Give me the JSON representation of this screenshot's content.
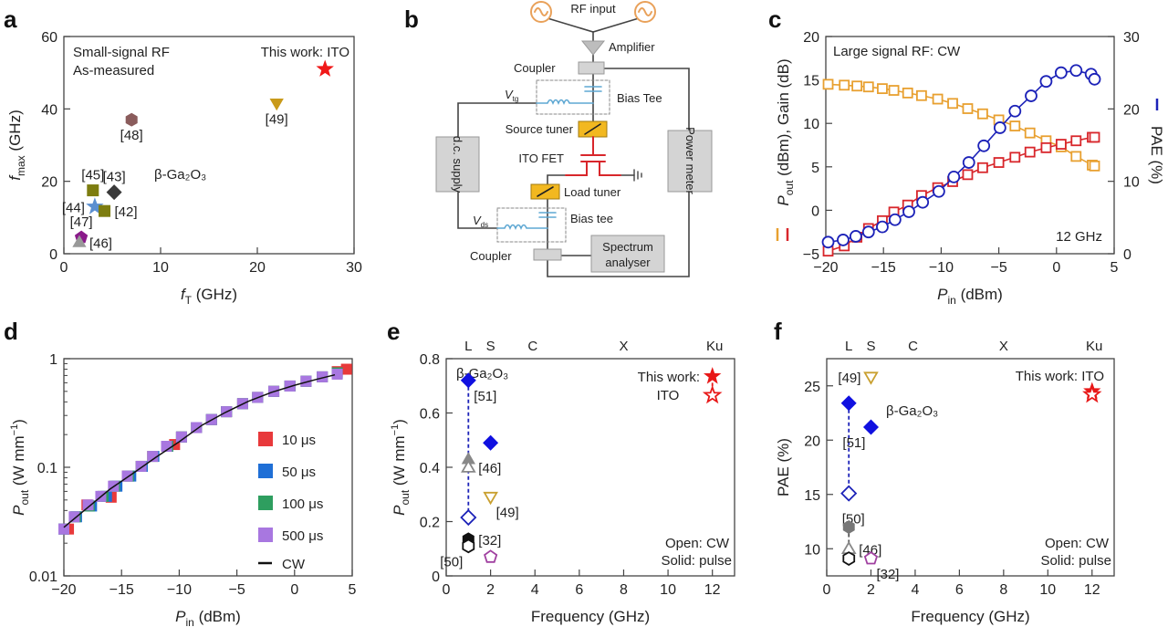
{
  "panel_labels": [
    "a",
    "b",
    "c",
    "d",
    "e",
    "f"
  ],
  "diagram": {
    "rf_input": "RF input",
    "amplifier": "Amplifier",
    "coupler_top": "Coupler",
    "bias_tee_top": "Bias Tee",
    "vtg_var": "V",
    "vtg_sub": "tg",
    "source_tuner": "Source tuner",
    "dc_supply": "d.c. supply",
    "ito_fet": "ITO FET",
    "load_tuner": "Load tuner",
    "bias_tee_bottom": "Bias tee",
    "vds_var": "V",
    "vds_sub": "ds",
    "coupler_bottom": "Coupler",
    "spectrum_line1": "Spectrum",
    "spectrum_line2": "analyser",
    "power_meter": "Power meter",
    "colors": {
      "source": "#e9a15a",
      "tuner": "#f2b820",
      "fet": "#d8262b",
      "bias": "#5fa8d3",
      "box": "#d4d4d4"
    }
  },
  "chart_data": [
    {
      "panel": "a",
      "type": "scatter",
      "xlabel": {
        "var": "f",
        "sub": "T",
        "unit": " (GHz)"
      },
      "ylabel": {
        "var": "f",
        "sub": "max",
        "unit": " (GHz)"
      },
      "xlim": [
        0,
        30
      ],
      "ylim": [
        0,
        60
      ],
      "xticks": [
        0,
        10,
        20,
        30
      ],
      "yticks": [
        0,
        20,
        40,
        60
      ],
      "annotations": {
        "line1": "Small-signal RF",
        "line2": "As-measured",
        "this_work": "This work: ITO",
        "material": "β-Ga₂O₃"
      },
      "points": [
        {
          "label": "",
          "x": 27,
          "y": 51,
          "marker": "star",
          "color": "#f01818",
          "filled": true
        },
        {
          "label": "[49]",
          "x": 22,
          "y": 41.5,
          "marker": "tri-down",
          "color": "#c99a1a",
          "filled": true,
          "label_pos": "below"
        },
        {
          "label": "[48]",
          "x": 7,
          "y": 37,
          "marker": "hexagon",
          "color": "#8a5c5c",
          "filled": true,
          "label_pos": "below"
        },
        {
          "label": "[45]",
          "x": 3,
          "y": 17.5,
          "marker": "square",
          "color": "#7d7d10",
          "filled": true,
          "label_pos": "above"
        },
        {
          "label": "[43]",
          "x": 5.2,
          "y": 17,
          "marker": "diamond",
          "color": "#3a3a3a",
          "filled": true,
          "label_pos": "above"
        },
        {
          "label": "[44]",
          "x": 3.2,
          "y": 13,
          "marker": "star",
          "color": "#5b8fd0",
          "filled": true,
          "label_pos": "left"
        },
        {
          "label": "[42]",
          "x": 4.2,
          "y": 11.8,
          "marker": "square",
          "color": "#7d7d10",
          "filled": true,
          "label_pos": "right"
        },
        {
          "label": "[47]",
          "x": 1.8,
          "y": 4.5,
          "marker": "pentagon",
          "color": "#8a1a8a",
          "filled": true,
          "label_pos": "above"
        },
        {
          "label": "[46]",
          "x": 1.6,
          "y": 3.2,
          "marker": "tri-up",
          "color": "#999999",
          "filled": true,
          "label_pos": "right"
        }
      ]
    },
    {
      "panel": "c",
      "type": "line",
      "xlabel": {
        "var": "P",
        "sub": "in",
        "unit": " (dBm)"
      },
      "ylabel_left": {
        "var": "P",
        "sub": "out",
        "unit": " (dBm), Gain (dB)"
      },
      "ylabel_right": "PAE (%)",
      "xlim": [
        -20,
        5
      ],
      "ylim_left": [
        -5,
        20
      ],
      "ylim_right": [
        0,
        30
      ],
      "xticks": [
        -20,
        -15,
        -10,
        -5,
        0,
        5
      ],
      "yticks_left": [
        -5,
        0,
        5,
        10,
        15,
        20
      ],
      "yticks_right": [
        0,
        10,
        20,
        30
      ],
      "annotations": {
        "title": "Large signal RF: CW",
        "frequency": "12 GHz"
      },
      "series": [
        {
          "axis": "left",
          "marker": "square",
          "color": "#e8a030",
          "x": [
            -19.8,
            -18.4,
            -17.3,
            -16.3,
            -15.1,
            -14.1,
            -12.9,
            -11.7,
            -10.3,
            -9,
            -7.7,
            -6.4,
            -5,
            -3.6,
            -2.3,
            -0.9,
            0.4,
            1.7,
            3.1,
            3.3
          ],
          "y": [
            14.5,
            14.4,
            14.3,
            14.2,
            14.0,
            13.8,
            13.5,
            13.2,
            12.8,
            12.3,
            11.7,
            11.1,
            10.4,
            9.7,
            8.9,
            8.0,
            7.3,
            6.2,
            5.2,
            5.1
          ]
        },
        {
          "axis": "left",
          "marker": "square",
          "color": "#d8262b",
          "x": [
            -19.8,
            -18.4,
            -17.3,
            -16.3,
            -15.1,
            -14.1,
            -12.9,
            -11.7,
            -10.3,
            -9,
            -7.7,
            -6.4,
            -5,
            -3.6,
            -2.3,
            -0.9,
            0.4,
            1.7,
            3.1,
            3.3
          ],
          "y": [
            -4.7,
            -4.1,
            -3.1,
            -2.1,
            -1.2,
            -0.2,
            0.6,
            1.7,
            2.6,
            3.3,
            4.1,
            4.9,
            5.5,
            6.1,
            6.7,
            7.2,
            7.6,
            8.0,
            8.4,
            8.4
          ]
        },
        {
          "axis": "right",
          "marker": "circle",
          "color": "#1c22b8",
          "x": [
            -19.8,
            -18.5,
            -17.4,
            -16.3,
            -15.1,
            -14,
            -12.8,
            -11.6,
            -10.2,
            -8.9,
            -7.6,
            -6.3,
            -4.9,
            -3.6,
            -2.2,
            -0.9,
            0.4,
            1.7,
            3.0,
            3.3
          ],
          "y": [
            1.6,
            1.9,
            2.4,
            3.0,
            3.7,
            4.7,
            5.8,
            7.1,
            8.6,
            10.6,
            12.6,
            14.9,
            17.4,
            19.7,
            21.8,
            23.8,
            25.0,
            25.3,
            24.8,
            24.1
          ]
        }
      ]
    },
    {
      "panel": "d",
      "type": "scatter",
      "xlabel": {
        "var": "P",
        "sub": "in",
        "unit": " (dBm)"
      },
      "ylabel": {
        "var": "P",
        "sub": "out",
        "unit": " (W mm",
        "sup": "−1",
        "close": ")"
      },
      "xlim": [
        -20,
        5
      ],
      "ylim": [
        0.01,
        1
      ],
      "yscale": "log",
      "xticks": [
        -20,
        -15,
        -10,
        -5,
        0,
        5
      ],
      "yticks": [
        "0.01",
        "0.1",
        "1"
      ],
      "legend_placement": "bottom-right",
      "series": [
        {
          "name": "10 μs",
          "color": "#e8393b",
          "marker": "square",
          "x": [
            -19.6,
            -18,
            -15.9,
            -14.5,
            -13.3,
            -12.3,
            -10.4,
            -9.8,
            -8.5,
            -7.2,
            -5.9,
            -4.5,
            -3.2,
            -1.8,
            -0.4,
            1,
            2.4,
            3.7,
            4.5
          ],
          "y": [
            0.027,
            0.045,
            0.053,
            0.083,
            0.102,
            0.126,
            0.162,
            0.19,
            0.232,
            0.275,
            0.325,
            0.385,
            0.44,
            0.5,
            0.56,
            0.62,
            0.68,
            0.76,
            0.8
          ]
        },
        {
          "name": "50 μs",
          "color": "#1f6fd6",
          "marker": "square",
          "x": [
            -20,
            -18.9,
            -17.6,
            -16.3,
            -15.4,
            -14.2,
            -13.2,
            -12.2,
            -11,
            -9.8,
            -8.5,
            -7.2,
            -5.9,
            -4.5,
            -3.2,
            -1.8,
            -0.4,
            1,
            2.4,
            3.7
          ],
          "y": [
            0.027,
            0.035,
            0.044,
            0.054,
            0.067,
            0.083,
            0.102,
            0.126,
            0.156,
            0.19,
            0.232,
            0.275,
            0.325,
            0.385,
            0.44,
            0.5,
            0.56,
            0.62,
            0.68,
            0.74
          ]
        },
        {
          "name": "100 μs",
          "color": "#2e9e5f",
          "marker": "square",
          "x": [
            -20,
            -19,
            -17.8,
            -16.6,
            -15.6,
            -14.4,
            -13.3,
            -12.3,
            -11,
            -9.8,
            -8.5,
            -7.2,
            -5.9,
            -4.5,
            -3.2,
            -1.8,
            -0.4,
            1,
            2.4,
            3.7
          ],
          "y": [
            0.027,
            0.035,
            0.044,
            0.054,
            0.067,
            0.083,
            0.102,
            0.126,
            0.156,
            0.19,
            0.232,
            0.275,
            0.325,
            0.385,
            0.44,
            0.5,
            0.56,
            0.62,
            0.68,
            0.74
          ]
        },
        {
          "name": "500 μs",
          "color": "#a877e0",
          "marker": "square",
          "x": [
            -20,
            -19.1,
            -17.9,
            -16.8,
            -15.7,
            -14.5,
            -13.3,
            -12.3,
            -11.1,
            -9.8,
            -8.5,
            -7.2,
            -5.9,
            -4.5,
            -3.2,
            -1.8,
            -0.4,
            1,
            2.4,
            3.7
          ],
          "y": [
            0.027,
            0.035,
            0.045,
            0.054,
            0.067,
            0.083,
            0.102,
            0.126,
            0.156,
            0.19,
            0.232,
            0.275,
            0.325,
            0.385,
            0.44,
            0.5,
            0.56,
            0.62,
            0.68,
            0.72
          ]
        },
        {
          "name": "CW",
          "color": "#111111",
          "marker": "line",
          "x": [
            -20,
            -18,
            -16,
            -14,
            -12,
            -10,
            -8,
            -6,
            -4,
            -2,
            0,
            2,
            3.5
          ],
          "y": [
            0.028,
            0.042,
            0.063,
            0.088,
            0.124,
            0.172,
            0.245,
            0.32,
            0.405,
            0.49,
            0.57,
            0.65,
            0.71
          ]
        }
      ]
    },
    {
      "panel": "e",
      "type": "scatter",
      "xlabel": "Frequency (GHz)",
      "ylabel": {
        "var": "P",
        "sub": "out",
        "unit": " (W mm",
        "sup": "−1",
        "close": ")"
      },
      "xlim": [
        0,
        13
      ],
      "ylim": [
        0,
        0.8
      ],
      "xticks": [
        0,
        2,
        4,
        6,
        8,
        10,
        12
      ],
      "yticks": [
        0,
        0.2,
        0.4,
        0.6,
        0.8
      ],
      "bands": [
        {
          "label": "L",
          "x": 1
        },
        {
          "label": "S",
          "x": 2
        },
        {
          "label": "C",
          "x": 3.9
        },
        {
          "label": "X",
          "x": 8
        },
        {
          "label": "Ku",
          "x": 12.1
        }
      ],
      "annotations": {
        "material": "β-Ga₂O₃",
        "this_work": "This work:",
        "ito": "ITO",
        "open": "Open: CW",
        "solid": "Solid: pulse"
      },
      "connectors": [
        {
          "from": [
            1,
            0.72
          ],
          "to": [
            1,
            0.215
          ],
          "color": "#1c22b8"
        },
        {
          "from": [
            1,
            0.43
          ],
          "to": [
            1,
            0.4
          ],
          "color": "#888888"
        },
        {
          "from": [
            12,
            0.735
          ],
          "to": [
            12,
            0.665
          ],
          "color": "#e81818"
        }
      ],
      "points": [
        {
          "label": "[51]",
          "x": 1,
          "y": 0.72,
          "marker": "diamond",
          "color": "#1010e0",
          "filled": true,
          "label_pos": "below-right"
        },
        {
          "label": "",
          "x": 1,
          "y": 0.215,
          "marker": "diamond",
          "color": "#1c22b8",
          "filled": false
        },
        {
          "label": "",
          "x": 2,
          "y": 0.49,
          "marker": "diamond",
          "color": "#1010e0",
          "filled": true
        },
        {
          "label": "",
          "x": 1,
          "y": 0.43,
          "marker": "tri-up",
          "color": "#888888",
          "filled": true
        },
        {
          "label": "[46]",
          "x": 1,
          "y": 0.4,
          "marker": "tri-up",
          "color": "#888888",
          "filled": false,
          "label_pos": "right"
        },
        {
          "label": "[49]",
          "x": 2,
          "y": 0.29,
          "marker": "tri-down",
          "color": "#c9a030",
          "filled": false,
          "label_pos": "below-right"
        },
        {
          "label": "[32]",
          "x": 1,
          "y": 0.135,
          "marker": "hexagon",
          "color": "#111111",
          "filled": true,
          "label_pos": "right"
        },
        {
          "label": "[50]",
          "x": 1,
          "y": 0.11,
          "marker": "hexagon",
          "color": "#111111",
          "filled": false,
          "label_pos": "below-left"
        },
        {
          "label": "",
          "x": 2,
          "y": 0.07,
          "marker": "pentagon",
          "color": "#a040a0",
          "filled": false
        },
        {
          "label": "",
          "x": 12,
          "y": 0.735,
          "marker": "star",
          "color": "#e81818",
          "filled": true
        },
        {
          "label": "",
          "x": 12,
          "y": 0.665,
          "marker": "star",
          "color": "#e81818",
          "filled": false
        }
      ]
    },
    {
      "panel": "f",
      "type": "scatter",
      "xlabel": "Frequency (GHz)",
      "ylabel": "PAE (%)",
      "xlim": [
        0,
        13
      ],
      "ylim": [
        7.5,
        27.5
      ],
      "xticks": [
        0,
        2,
        4,
        6,
        8,
        10,
        12
      ],
      "yticks": [
        10,
        15,
        20,
        25
      ],
      "bands": [
        {
          "label": "L",
          "x": 1
        },
        {
          "label": "S",
          "x": 2
        },
        {
          "label": "C",
          "x": 3.9
        },
        {
          "label": "X",
          "x": 8
        },
        {
          "label": "Ku",
          "x": 12.1
        }
      ],
      "annotations": {
        "material": "β-Ga₂O₃",
        "this_work": "This work: ITO",
        "open": "Open: CW",
        "solid": "Solid: pulse"
      },
      "connectors": [
        {
          "from": [
            1,
            23.4
          ],
          "to": [
            1,
            15.1
          ],
          "color": "#1c22b8"
        },
        {
          "from": [
            1,
            12
          ],
          "to": [
            1,
            10
          ],
          "color": "#555555"
        }
      ],
      "points": [
        {
          "label": "[49]",
          "x": 2,
          "y": 25.8,
          "marker": "tri-down",
          "color": "#c9a030",
          "filled": false,
          "label_pos": "left"
        },
        {
          "label": "",
          "x": 1,
          "y": 23.4,
          "marker": "diamond",
          "color": "#1010e0",
          "filled": true
        },
        {
          "label": "[51]",
          "x": 2,
          "y": 21.2,
          "marker": "diamond",
          "color": "#1010e0",
          "filled": true,
          "label_pos": "below-left"
        },
        {
          "label": "[50]",
          "x": 1,
          "y": 15.1,
          "marker": "diamond",
          "color": "#1c22b8",
          "filled": false,
          "label_pos": "below-low"
        },
        {
          "label": "",
          "x": 1,
          "y": 12,
          "marker": "hexagon",
          "color": "#777777",
          "filled": true
        },
        {
          "label": "[46]",
          "x": 1,
          "y": 10,
          "marker": "tri-up",
          "color": "#888888",
          "filled": false,
          "label_pos": "right"
        },
        {
          "label": "",
          "x": 1,
          "y": 9.1,
          "marker": "hexagon",
          "color": "#111111",
          "filled": false
        },
        {
          "label": "[32]",
          "x": 2,
          "y": 9.1,
          "marker": "pentagon",
          "color": "#a040a0",
          "filled": false,
          "label_pos": "below-right"
        },
        {
          "label": "",
          "x": 12,
          "y": 24.5,
          "marker": "star",
          "color": "#e81818",
          "filled": true
        },
        {
          "label": "",
          "x": 12,
          "y": 24.2,
          "marker": "star",
          "color": "#e81818",
          "filled": false
        }
      ]
    }
  ]
}
